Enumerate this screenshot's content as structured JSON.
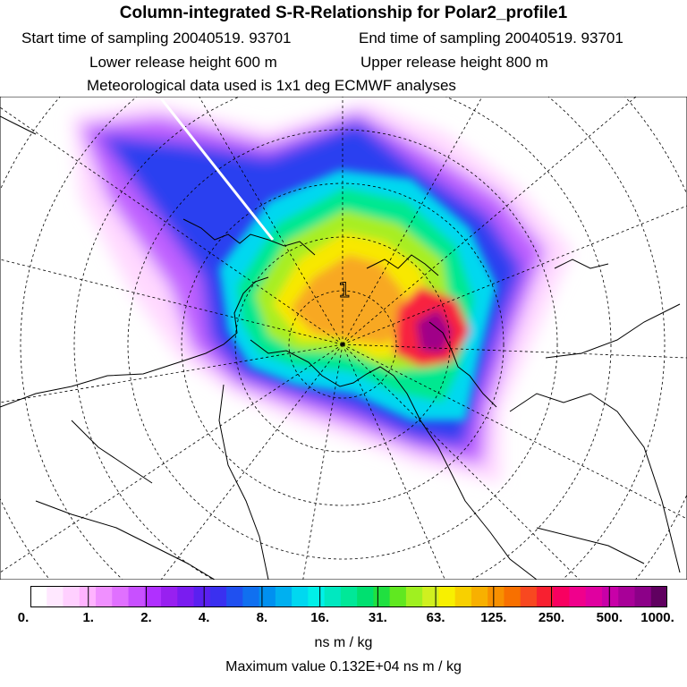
{
  "header": {
    "title": "Column-integrated S-R-Relationship for Polar2_profile1",
    "start_sampling": "Start time of sampling 20040519. 93701",
    "end_sampling": "End time of sampling 20040519. 93701",
    "lower_release": "Lower release height  600 m",
    "upper_release": "Upper release height  800 m",
    "met_data": "Meteorological data used is 1x1 deg ECMWF analyses"
  },
  "map": {
    "marker_label": "1"
  },
  "colorbar": {
    "colors": [
      "#ffffff",
      "#ffe8ff",
      "#ffd0ff",
      "#ffb3ff",
      "#f090ff",
      "#e070ff",
      "#c850ff",
      "#b030ff",
      "#9820f0",
      "#7a1cf0",
      "#5a20f0",
      "#3a30f0",
      "#2050f0",
      "#1070f0",
      "#0090f0",
      "#00b0f0",
      "#00d8f0",
      "#00f0e8",
      "#00e8c0",
      "#00e898",
      "#00e070",
      "#20e040",
      "#60e820",
      "#a0f020",
      "#d0f020",
      "#f8f000",
      "#f8d000",
      "#f8b000",
      "#f89000",
      "#f87000",
      "#f84820",
      "#f82030",
      "#f80060",
      "#f0008c",
      "#e000a0",
      "#c800a8",
      "#a80098",
      "#8c0088",
      "#600060"
    ],
    "tick_labels": [
      "0.",
      "1.",
      "2.",
      "4.",
      "8.",
      "16.",
      "31.",
      "63.",
      "125.",
      "250.",
      "500.",
      "1000."
    ]
  },
  "units": "ns m / kg",
  "max_value": "Maximum value  0.132E+04 ns m / kg"
}
